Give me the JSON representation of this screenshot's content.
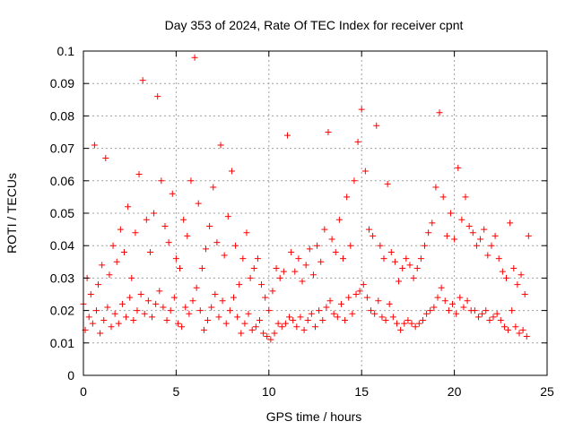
{
  "chart_data": {
    "type": "scatter",
    "title": "Day 353 of 2024, Rate Of TEC Index for receiver cpnt",
    "xlabel": "GPS time / hours",
    "ylabel": "ROTI / TECUs",
    "xlim": [
      0,
      25
    ],
    "ylim": [
      0,
      0.1
    ],
    "xticks": [
      "0",
      "5",
      "10",
      "15",
      "20",
      "25"
    ],
    "yticks": [
      "0",
      "0.01",
      "0.02",
      "0.03",
      "0.04",
      "0.05",
      "0.06",
      "0.07",
      "0.08",
      "0.09",
      "0.1"
    ],
    "grid": true,
    "marker": "+",
    "color": "#ff0000",
    "series": [
      {
        "x": [
          0.0,
          0.2,
          0.4,
          0.6,
          0.8,
          1.0,
          1.2,
          1.4,
          1.6,
          1.8,
          2.0,
          2.2,
          2.4,
          2.6,
          2.8,
          3.0,
          3.2,
          3.4,
          3.6,
          3.8,
          4.0,
          4.2,
          4.4,
          4.6,
          4.8,
          5.0,
          5.2,
          5.4,
          5.6,
          5.8,
          6.0,
          6.2,
          6.4,
          6.6,
          6.8,
          7.0,
          7.2,
          7.4,
          7.6,
          7.8,
          8.0,
          8.2,
          8.4,
          8.6,
          8.8,
          9.0,
          9.2,
          9.4,
          9.6,
          9.8,
          10.0,
          10.2,
          10.4,
          10.6,
          10.8,
          11.0,
          11.2,
          11.4,
          11.6,
          11.8,
          12.0,
          12.2,
          12.4,
          12.6,
          12.8,
          13.0,
          13.2,
          13.4,
          13.6,
          13.8,
          14.0,
          14.2,
          14.4,
          14.6,
          14.8,
          15.0,
          15.2,
          15.4,
          15.6,
          15.8,
          16.0,
          16.2,
          16.4,
          16.6,
          16.8,
          17.0,
          17.2,
          17.4,
          17.6,
          17.8,
          18.0,
          18.2,
          18.4,
          18.6,
          18.8,
          19.0,
          19.2,
          19.4,
          19.6,
          19.8,
          20.0,
          20.2,
          20.4,
          20.6,
          20.8,
          21.0,
          21.2,
          21.4,
          21.6,
          21.8,
          22.0,
          22.2,
          22.4,
          22.6,
          22.8,
          23.0,
          23.2,
          23.4,
          23.6,
          23.8,
          24.0
        ],
        "y": [
          0.022,
          0.03,
          0.025,
          0.071,
          0.028,
          0.034,
          0.067,
          0.031,
          0.04,
          0.035,
          0.045,
          0.038,
          0.052,
          0.03,
          0.044,
          0.062,
          0.091,
          0.048,
          0.038,
          0.05,
          0.086,
          0.06,
          0.046,
          0.041,
          0.056,
          0.036,
          0.033,
          0.048,
          0.043,
          0.06,
          0.098,
          0.053,
          0.033,
          0.039,
          0.046,
          0.058,
          0.041,
          0.071,
          0.037,
          0.049,
          0.063,
          0.04,
          0.028,
          0.036,
          0.044,
          0.03,
          0.033,
          0.036,
          0.028,
          0.024,
          0.02,
          0.026,
          0.033,
          0.03,
          0.032,
          0.074,
          0.038,
          0.032,
          0.036,
          0.029,
          0.034,
          0.039,
          0.031,
          0.04,
          0.035,
          0.045,
          0.075,
          0.042,
          0.038,
          0.048,
          0.036,
          0.055,
          0.04,
          0.06,
          0.072,
          0.082,
          0.063,
          0.045,
          0.043,
          0.077,
          0.04,
          0.036,
          0.059,
          0.038,
          0.035,
          0.029,
          0.033,
          0.036,
          0.034,
          0.03,
          0.033,
          0.036,
          0.04,
          0.044,
          0.047,
          0.058,
          0.081,
          0.055,
          0.043,
          0.05,
          0.042,
          0.064,
          0.048,
          0.055,
          0.046,
          0.044,
          0.04,
          0.042,
          0.045,
          0.037,
          0.04,
          0.043,
          0.036,
          0.032,
          0.03,
          0.047,
          0.033,
          0.028,
          0.031,
          0.025,
          0.043
        ]
      },
      {
        "x": [
          0.1,
          0.3,
          0.5,
          0.7,
          0.9,
          1.1,
          1.3,
          1.5,
          1.7,
          1.9,
          2.1,
          2.3,
          2.5,
          2.7,
          2.9,
          3.1,
          3.3,
          3.5,
          3.7,
          3.9,
          4.1,
          4.3,
          4.5,
          4.7,
          4.9,
          5.1,
          5.3,
          5.5,
          5.7,
          5.9,
          6.1,
          6.3,
          6.5,
          6.7,
          6.9,
          7.1,
          7.3,
          7.5,
          7.7,
          7.9,
          8.1,
          8.3,
          8.5,
          8.7,
          8.9,
          9.1,
          9.3,
          9.5,
          9.7,
          9.9,
          10.1,
          10.3,
          10.5,
          10.7,
          10.9,
          11.1,
          11.3,
          11.5,
          11.7,
          11.9,
          12.1,
          12.3,
          12.5,
          12.7,
          12.9,
          13.1,
          13.3,
          13.5,
          13.7,
          13.9,
          14.1,
          14.3,
          14.5,
          14.7,
          14.9,
          15.1,
          15.3,
          15.5,
          15.7,
          15.9,
          16.1,
          16.3,
          16.5,
          16.7,
          16.9,
          17.1,
          17.3,
          17.5,
          17.7,
          17.9,
          18.1,
          18.3,
          18.5,
          18.7,
          18.9,
          19.1,
          19.3,
          19.5,
          19.7,
          19.9,
          20.1,
          20.3,
          20.5,
          20.7,
          20.9,
          21.1,
          21.3,
          21.5,
          21.7,
          21.9,
          22.1,
          22.3,
          22.5,
          22.7,
          22.9,
          23.1,
          23.3,
          23.5,
          23.7,
          23.9
        ],
        "y": [
          0.014,
          0.018,
          0.016,
          0.02,
          0.013,
          0.017,
          0.021,
          0.015,
          0.019,
          0.016,
          0.022,
          0.018,
          0.024,
          0.017,
          0.02,
          0.025,
          0.019,
          0.023,
          0.018,
          0.022,
          0.026,
          0.021,
          0.017,
          0.02,
          0.024,
          0.016,
          0.015,
          0.021,
          0.019,
          0.023,
          0.027,
          0.02,
          0.014,
          0.017,
          0.021,
          0.025,
          0.018,
          0.023,
          0.016,
          0.02,
          0.024,
          0.018,
          0.013,
          0.016,
          0.019,
          0.014,
          0.015,
          0.017,
          0.013,
          0.012,
          0.011,
          0.013,
          0.016,
          0.015,
          0.016,
          0.018,
          0.017,
          0.015,
          0.018,
          0.014,
          0.017,
          0.019,
          0.015,
          0.02,
          0.017,
          0.021,
          0.023,
          0.019,
          0.018,
          0.022,
          0.017,
          0.024,
          0.019,
          0.025,
          0.026,
          0.028,
          0.024,
          0.02,
          0.019,
          0.023,
          0.018,
          0.017,
          0.022,
          0.018,
          0.016,
          0.014,
          0.016,
          0.017,
          0.016,
          0.015,
          0.016,
          0.017,
          0.019,
          0.02,
          0.021,
          0.024,
          0.027,
          0.023,
          0.02,
          0.022,
          0.019,
          0.024,
          0.021,
          0.023,
          0.02,
          0.02,
          0.018,
          0.019,
          0.02,
          0.017,
          0.018,
          0.019,
          0.017,
          0.015,
          0.014,
          0.02,
          0.015,
          0.013,
          0.014,
          0.012
        ]
      }
    ]
  }
}
